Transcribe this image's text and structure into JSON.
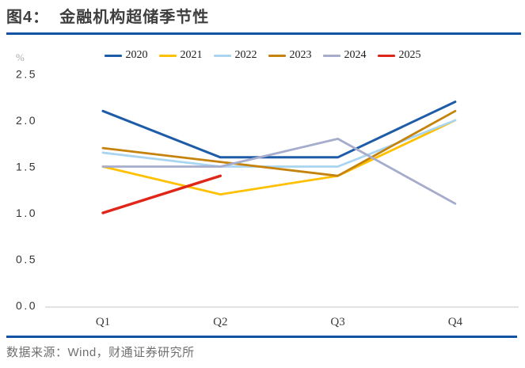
{
  "header": {
    "title": "图4：  金融机构超储季节性"
  },
  "chart_data": {
    "type": "line",
    "title": "金融机构超储季节性",
    "unit_label": "%",
    "categories": [
      "Q1",
      "Q2",
      "Q3",
      "Q4"
    ],
    "y_ticks": [
      "2.5",
      "2.0",
      "1.5",
      "1.0",
      "0.5",
      "0.0"
    ],
    "ylim": [
      0.0,
      2.5
    ],
    "xlabel": "",
    "ylabel": "%",
    "grid": false,
    "legend_position": "top",
    "series": [
      {
        "name": "2020",
        "color": "#1e5ca8",
        "stroke_width": 3.0,
        "values": [
          2.1,
          1.6,
          1.6,
          2.2
        ]
      },
      {
        "name": "2021",
        "color": "#ffc000",
        "stroke_width": 2.8,
        "values": [
          1.5,
          1.2,
          1.4,
          2.0
        ]
      },
      {
        "name": "2022",
        "color": "#a9d5f0",
        "stroke_width": 2.8,
        "values": [
          1.65,
          1.5,
          1.5,
          2.0
        ]
      },
      {
        "name": "2023",
        "color": "#c5830d",
        "stroke_width": 2.8,
        "values": [
          1.7,
          1.55,
          1.4,
          2.1
        ]
      },
      {
        "name": "2024",
        "color": "#a6accb",
        "stroke_width": 2.8,
        "values": [
          1.5,
          1.5,
          1.8,
          1.1
        ]
      },
      {
        "name": "2025",
        "color": "#e02519",
        "stroke_width": 3.4,
        "values": [
          1.0,
          1.4,
          null,
          null
        ]
      }
    ]
  },
  "footer": {
    "source": "数据来源：Wind，财通证券研究所"
  },
  "colors": {
    "rule": "#1253a4",
    "axis_line": "#d9d9d9",
    "title_text": "#3e3e3e",
    "footer_text": "#6f6f6f"
  }
}
